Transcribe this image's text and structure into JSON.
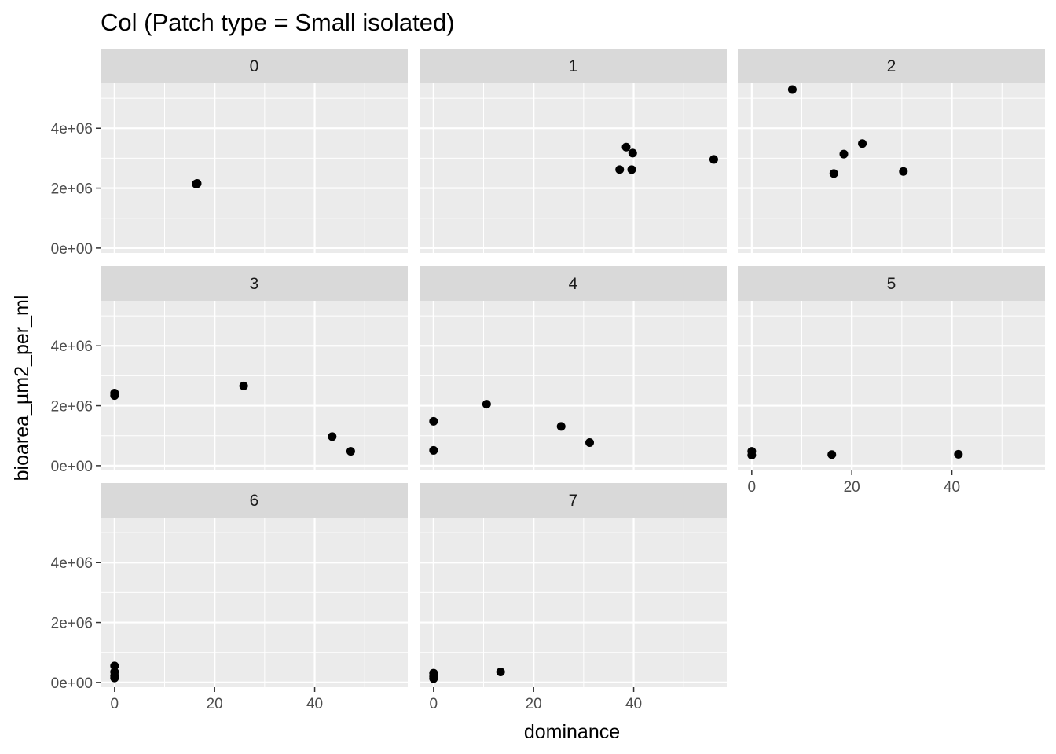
{
  "chart_data": {
    "type": "scatter",
    "title": "Col (Patch type = Small isolated)",
    "xlabel": "dominance",
    "ylabel": "bioarea_µm2_per_ml",
    "xlim": [
      -2.8,
      58.6
    ],
    "ylim": [
      -160000,
      5500000
    ],
    "x_ticks": [
      0,
      20,
      40
    ],
    "x_tick_labels": [
      "0",
      "20",
      "40"
    ],
    "y_ticks": [
      0,
      2000000,
      4000000
    ],
    "y_tick_labels": [
      "0e+00",
      "2e+06",
      "4e+06"
    ],
    "grid": true,
    "legend": "none",
    "point_color": "#000000",
    "facets": [
      {
        "label": "0",
        "points": [
          {
            "x": 16.5,
            "y": 2150000
          },
          {
            "x": 16.5,
            "y": 2160000
          },
          {
            "x": 16.3,
            "y": 2140000
          }
        ]
      },
      {
        "label": "1",
        "points": [
          {
            "x": 37.2,
            "y": 2620000
          },
          {
            "x": 38.5,
            "y": 3370000
          },
          {
            "x": 39.8,
            "y": 3170000
          },
          {
            "x": 39.6,
            "y": 2620000
          },
          {
            "x": 56.0,
            "y": 2960000
          }
        ]
      },
      {
        "label": "2",
        "points": [
          {
            "x": 8.1,
            "y": 5290000
          },
          {
            "x": 16.4,
            "y": 2490000
          },
          {
            "x": 18.4,
            "y": 3140000
          },
          {
            "x": 22.1,
            "y": 3490000
          },
          {
            "x": 30.3,
            "y": 2560000
          }
        ]
      },
      {
        "label": "3",
        "points": [
          {
            "x": 0.0,
            "y": 2420000
          },
          {
            "x": 0.0,
            "y": 2340000
          },
          {
            "x": 25.8,
            "y": 2660000
          },
          {
            "x": 43.5,
            "y": 970000
          },
          {
            "x": 47.2,
            "y": 480000
          }
        ]
      },
      {
        "label": "4",
        "points": [
          {
            "x": 0.0,
            "y": 1480000
          },
          {
            "x": 0.0,
            "y": 510000
          },
          {
            "x": 10.6,
            "y": 2050000
          },
          {
            "x": 25.5,
            "y": 1310000
          },
          {
            "x": 31.2,
            "y": 770000
          }
        ]
      },
      {
        "label": "5",
        "points": [
          {
            "x": 0.0,
            "y": 480000
          },
          {
            "x": 0.0,
            "y": 350000
          },
          {
            "x": 16.0,
            "y": 370000
          },
          {
            "x": 41.3,
            "y": 380000
          }
        ]
      },
      {
        "label": "6",
        "points": [
          {
            "x": 0.0,
            "y": 550000
          },
          {
            "x": 0.0,
            "y": 350000
          },
          {
            "x": 0.0,
            "y": 220000
          },
          {
            "x": 0.0,
            "y": 150000
          }
        ]
      },
      {
        "label": "7",
        "points": [
          {
            "x": 0.0,
            "y": 310000
          },
          {
            "x": 0.0,
            "y": 200000
          },
          {
            "x": 0.0,
            "y": 130000
          },
          {
            "x": 13.4,
            "y": 350000
          }
        ]
      }
    ]
  }
}
